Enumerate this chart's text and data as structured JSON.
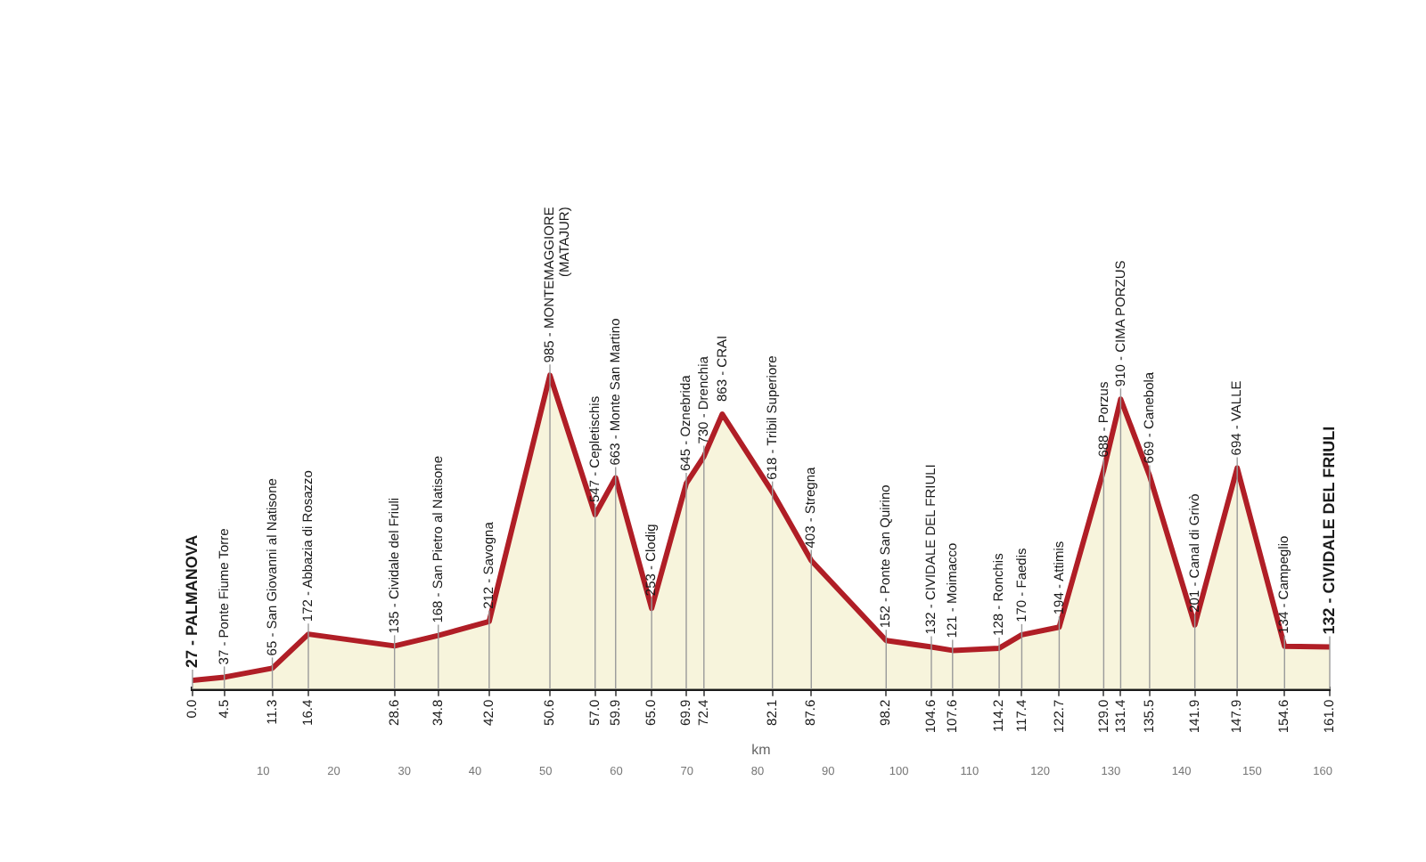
{
  "chart_data": {
    "type": "area",
    "x": [
      0,
      4.5,
      11.3,
      16.4,
      28.6,
      34.8,
      42.0,
      50.6,
      57.0,
      59.9,
      65.0,
      69.9,
      72.4,
      75,
      82.1,
      87.6,
      98.2,
      104.6,
      107.6,
      114.2,
      117.4,
      122.7,
      129.0,
      131.4,
      135.5,
      141.9,
      147.9,
      154.6,
      161.0
    ],
    "values": [
      27,
      37,
      65,
      172,
      135,
      168,
      212,
      985,
      547,
      663,
      253,
      645,
      730,
      863,
      618,
      403,
      152,
      132,
      121,
      128,
      170,
      194,
      688,
      910,
      669,
      201,
      694,
      134,
      132
    ],
    "value_labels": [
      "27 - PALMANOVA",
      "37 - Ponte Fiume Torre",
      "65 - San Giovanni al Natisone",
      "172 - Abbazia di Rosazzo",
      "135 - Cividale del Friuli",
      "168 - San Pietro al Natisone",
      "212 - Savogna",
      "985 - MONTEMAGGIORE\n(MATAJUR)",
      "547 - Cepletischis",
      "663 - Monte San Martino",
      "253 - Clodig",
      "645 - Oznebrida",
      "730 - Drenchia",
      "863 - CRAI",
      "618 - Tribil Superiore",
      "403 - Stregna",
      "152 - Ponte San Quirino",
      "132 - CIVIDALE DEL FRIULI",
      "121 - Moimacco",
      "128 - Ronchis",
      "170 - Faedis",
      "194 - Attimis",
      "688 - Porzus",
      "910 - CIMA PORZUS",
      "669 - Canebola",
      "201 - Canal di Grivò",
      "694 - VALLE",
      "134 - Campeglio",
      "132 - CIVIDALE DEL FRIULI"
    ],
    "color": "#b01e26",
    "xlim": [
      0,
      161
    ],
    "xticks": [
      {
        "value": 0,
        "label": "0.0"
      },
      4.5,
      11.3,
      16.4,
      28.6,
      34.8,
      {
        "value": 42,
        "label": "42.0"
      },
      50.6,
      {
        "value": 57,
        "label": "57.0"
      },
      59.9,
      {
        "value": 65,
        "label": "65.0"
      },
      69.9,
      72.4,
      82.1,
      87.6,
      98.2,
      104.6,
      107.6,
      114.2,
      117.4,
      122.7,
      {
        "value": 129,
        "label": "129.0"
      },
      131.4,
      135.5,
      141.9,
      147.9,
      154.6,
      {
        "value": 161,
        "label": "161.0"
      }
    ],
    "x2lim": [
      0,
      161
    ],
    "x2ticks": [
      10,
      20,
      30,
      40,
      50,
      60,
      70,
      80,
      90,
      100,
      110,
      120,
      130,
      140,
      150,
      160
    ],
    "xlabel": "km",
    "grid": "x",
    "marker": "none",
    "tick_labels": "x"
  }
}
